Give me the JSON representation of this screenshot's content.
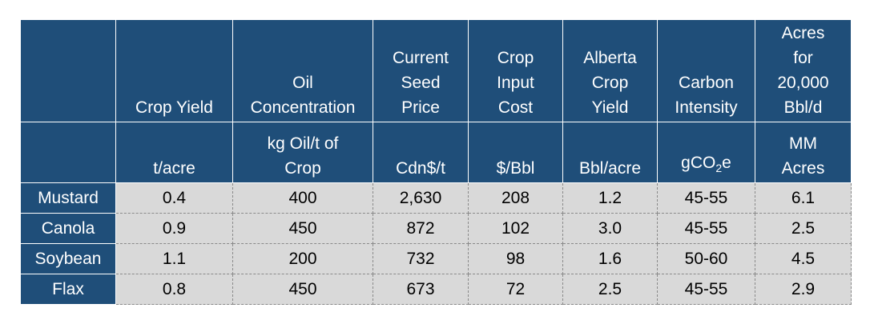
{
  "header": {
    "columns": [
      [],
      [
        "Crop Yield"
      ],
      [
        "Oil",
        "Concentration"
      ],
      [
        "Current",
        "Seed",
        "Price"
      ],
      [
        "Crop",
        "Input",
        "Cost"
      ],
      [
        "Alberta",
        "Crop",
        "Yield"
      ],
      [
        "Carbon",
        "Intensity"
      ],
      [
        "Acres",
        "for",
        "20,000",
        "Bbl/d"
      ]
    ]
  },
  "units": {
    "columns": [
      [],
      [
        "t/acre"
      ],
      [
        "kg Oil/t of",
        "Crop"
      ],
      [
        "Cdn$/t"
      ],
      [
        "$/Bbl"
      ],
      [
        "Bbl/acre"
      ],
      [
        "gCO2e"
      ],
      [
        "MM",
        "Acres"
      ]
    ],
    "carbon_unit_prefix": "gCO",
    "carbon_unit_sub": "2",
    "carbon_unit_suffix": "e"
  },
  "rows": [
    {
      "crop": "Mustard",
      "values": [
        "0.4",
        "400",
        "2,630",
        "208",
        "1.2",
        "45-55",
        "6.1"
      ]
    },
    {
      "crop": "Canola",
      "values": [
        "0.9",
        "450",
        "872",
        "102",
        "3.0",
        "45-55",
        "2.5"
      ]
    },
    {
      "crop": "Soybean",
      "values": [
        "1.1",
        "200",
        "732",
        "98",
        "1.6",
        "50-60",
        "4.5"
      ]
    },
    {
      "crop": "Flax",
      "values": [
        "0.8",
        "450",
        "673",
        "72",
        "2.5",
        "45-55",
        "2.9"
      ]
    }
  ]
}
